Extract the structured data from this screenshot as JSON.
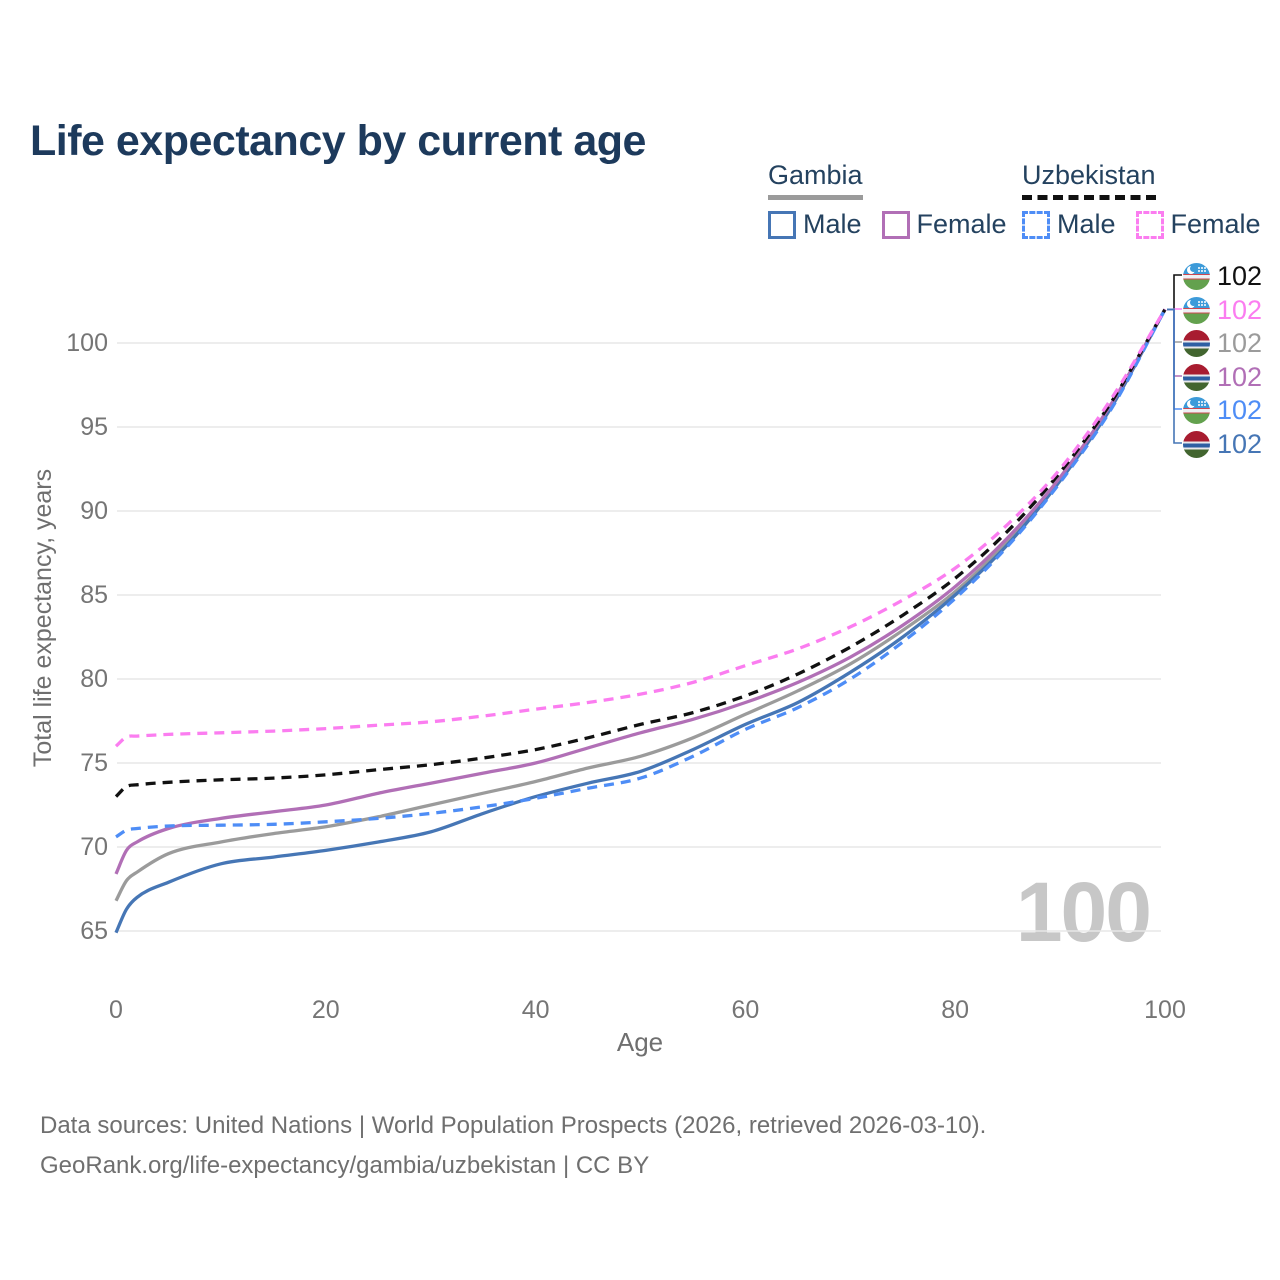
{
  "title": "Life expectancy by current age",
  "colors": {
    "title": "#1d3a5c",
    "legend_text": "#24425f",
    "axis_text": "#757575",
    "axis_title_text": "#6f6f6f",
    "grid": "#e7e7e7",
    "footer_text": "#6f6f6f",
    "watermark": "#c7c7c7"
  },
  "legend": {
    "groups": [
      {
        "country": "Gambia",
        "underline_style": "solid",
        "underline_color": "#9b9b9b",
        "items": [
          {
            "label": "Male",
            "color": "#4676b5",
            "dashed": false
          },
          {
            "label": "Female",
            "color": "#b16fb6",
            "dashed": false
          }
        ]
      },
      {
        "country": "Uzbekistan",
        "underline_style": "dashed",
        "underline_color": "#111111",
        "items": [
          {
            "label": "Male",
            "color": "#4e8df6",
            "dashed": true
          },
          {
            "label": "Female",
            "color": "#fb7df0",
            "dashed": true
          }
        ]
      }
    ]
  },
  "chart_data": {
    "type": "line",
    "title": "Life expectancy by current age",
    "xlabel": "Age",
    "ylabel": "Total life expectancy, years",
    "xlim": [
      0,
      100
    ],
    "ylim": [
      63,
      104
    ],
    "xticks": [
      0,
      20,
      40,
      60,
      80,
      100
    ],
    "yticks": [
      65,
      70,
      75,
      80,
      85,
      90,
      95,
      100
    ],
    "grid": "horizontal",
    "legend_position": "top-right",
    "hovered_age": 100,
    "ages": [
      0,
      1,
      2,
      5,
      10,
      15,
      20,
      25,
      30,
      35,
      40,
      45,
      50,
      55,
      60,
      65,
      70,
      75,
      80,
      85,
      90,
      95,
      100
    ],
    "series": [
      {
        "name": "Gambia",
        "sex": "both",
        "color": "#9b9b9b",
        "dashed": false,
        "values": [
          66.8,
          68.0,
          68.5,
          69.6,
          70.3,
          70.8,
          71.2,
          71.8,
          72.5,
          73.2,
          73.9,
          74.7,
          75.4,
          76.5,
          77.9,
          79.3,
          80.9,
          82.9,
          85.2,
          88.2,
          91.9,
          96.4,
          102
        ]
      },
      {
        "name": "Gambia Male",
        "sex": "male",
        "color": "#4676b5",
        "dashed": false,
        "values": [
          64.9,
          66.3,
          67.0,
          67.9,
          69.0,
          69.4,
          69.8,
          70.3,
          70.9,
          72.0,
          73.0,
          73.8,
          74.5,
          75.8,
          77.3,
          78.6,
          80.4,
          82.5,
          85.0,
          88.0,
          91.8,
          96.3,
          102
        ]
      },
      {
        "name": "Gambia Female",
        "sex": "female",
        "color": "#b16fb6",
        "dashed": false,
        "values": [
          68.4,
          69.8,
          70.3,
          71.1,
          71.7,
          72.1,
          72.5,
          73.2,
          73.8,
          74.4,
          75.0,
          75.9,
          76.8,
          77.6,
          78.6,
          79.8,
          81.3,
          83.2,
          85.5,
          88.4,
          92.0,
          96.5,
          102
        ]
      },
      {
        "name": "Uzbekistan",
        "sex": "both",
        "color": "#111111",
        "dashed": true,
        "values": [
          73.0,
          73.6,
          73.7,
          73.85,
          74.0,
          74.1,
          74.3,
          74.6,
          74.9,
          75.3,
          75.8,
          76.5,
          77.3,
          78.0,
          79.0,
          80.3,
          81.9,
          83.8,
          86.0,
          88.8,
          92.3,
          96.6,
          102
        ]
      },
      {
        "name": "Uzbekistan Male",
        "sex": "male",
        "color": "#4e8df6",
        "dashed": true,
        "values": [
          70.6,
          71.0,
          71.1,
          71.25,
          71.3,
          71.35,
          71.5,
          71.7,
          72.0,
          72.4,
          72.9,
          73.5,
          74.1,
          75.4,
          77.0,
          78.3,
          80.0,
          82.2,
          84.8,
          87.9,
          91.7,
          96.2,
          102
        ]
      },
      {
        "name": "Uzbekistan Female",
        "sex": "female",
        "color": "#fb7df0",
        "dashed": true,
        "values": [
          76.0,
          76.55,
          76.6,
          76.7,
          76.8,
          76.9,
          77.05,
          77.25,
          77.45,
          77.8,
          78.2,
          78.6,
          79.1,
          79.8,
          80.8,
          81.8,
          83.1,
          84.7,
          86.6,
          89.2,
          92.5,
          96.8,
          102
        ]
      }
    ]
  },
  "end_labels": [
    {
      "series": "Uzbekistan",
      "flag": "uzbekistan",
      "value": "102",
      "color": "#111111"
    },
    {
      "series": "Uzbekistan Female",
      "flag": "uzbekistan",
      "value": "102",
      "color": "#fb7df0"
    },
    {
      "series": "Gambia",
      "flag": "gambia",
      "value": "102",
      "color": "#9b9b9b"
    },
    {
      "series": "Gambia Female",
      "flag": "gambia",
      "value": "102",
      "color": "#b16fb6"
    },
    {
      "series": "Uzbekistan Male",
      "flag": "uzbekistan",
      "value": "102",
      "color": "#4e8df6"
    },
    {
      "series": "Gambia Male",
      "flag": "gambia",
      "value": "102",
      "color": "#4676b5"
    }
  ],
  "icons": {
    "uzbekistan-flag": {
      "stripes": [
        [
          "#3d9bd9",
          0,
          40
        ],
        [
          "#cf4750",
          40,
          45
        ],
        [
          "#eef1f4",
          45,
          57
        ],
        [
          "#cf4750",
          57,
          62
        ],
        [
          "#63a14e",
          62,
          100
        ]
      ]
    },
    "gambia-flag": {
      "stripes": [
        [
          "#a81c30",
          0,
          38
        ],
        [
          "#e9e9ec",
          38,
          46
        ],
        [
          "#2e5fa3",
          46,
          61
        ],
        [
          "#e9e9ec",
          61,
          69
        ],
        [
          "#42652f",
          69,
          100
        ]
      ]
    }
  },
  "watermark": "100",
  "footer": {
    "line1": "Data sources: United Nations | World Population Prospects (2026, retrieved 2026-03-10).",
    "line2": "GeoRank.org/life-expectancy/gambia/uzbekistan | CC BY"
  }
}
